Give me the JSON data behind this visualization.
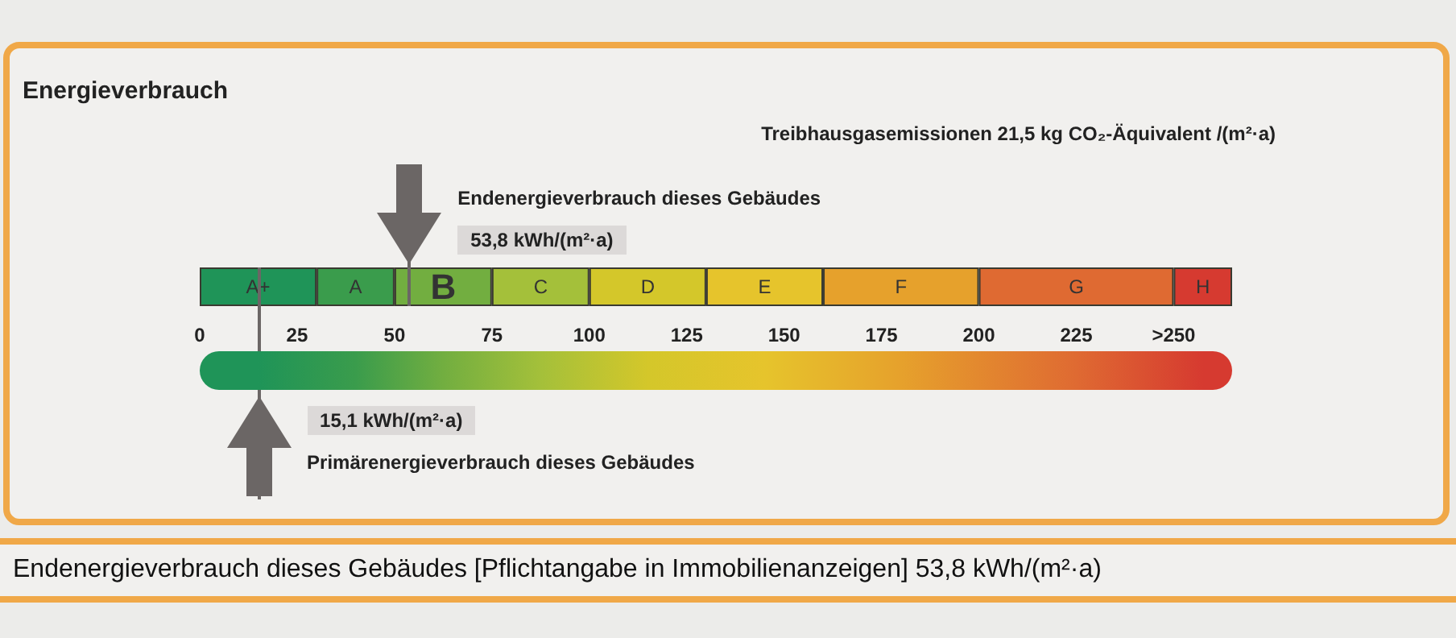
{
  "chart_data": {
    "type": "bar",
    "orientation": "horizontal",
    "stacked": true,
    "title": "Energieverbrauch",
    "categories": [
      null
    ],
    "tick_labels": "x",
    "xlim": [
      0,
      265
    ],
    "xticks": [
      0,
      25,
      50,
      75,
      100,
      125,
      150,
      175,
      200,
      225,
      {
        "value": 250,
        "label": ">250"
      }
    ],
    "series": [
      {
        "name": "A+",
        "color": "#1f9458",
        "values": [
          30
        ]
      },
      {
        "name": "A",
        "color": "#3a9c4c",
        "values": [
          20
        ]
      },
      {
        "name": "B",
        "color": "#72ae40",
        "values": [
          25
        ]
      },
      {
        "name": "C",
        "color": "#a4c03a",
        "values": [
          25
        ]
      },
      {
        "name": "D",
        "color": "#d4c72a",
        "values": [
          30
        ]
      },
      {
        "name": "E",
        "color": "#e6c42c",
        "values": [
          30
        ]
      },
      {
        "name": "F",
        "color": "#e6a12c",
        "values": [
          40
        ]
      },
      {
        "name": "G",
        "color": "#df6a32",
        "values": [
          50
        ]
      },
      {
        "name": "H",
        "color": "#d63a30",
        "values": [
          15
        ]
      }
    ],
    "ref_lines": [
      {
        "axis": "x",
        "value": 53.8,
        "label": "Endenergieverbrauch dieses Gebäudes",
        "color": "#6b6665"
      },
      {
        "axis": "x",
        "value": 15.1,
        "label": "Primärenergieverbrauch dieses Gebäudes",
        "color": "#6b6665"
      }
    ],
    "annotations": [
      "Treibhausgasemissionen 21,5 kg CO₂-Äquivalent /(m²·a)",
      "53,8 kWh/(m²·a)",
      "15,1 kWh/(m²·a)",
      "Endenergieverbrauch dieses Gebäudes [Pflichtangabe in Immobilienanzeigen] 53,8 kWh/(m²·a)"
    ]
  }
}
